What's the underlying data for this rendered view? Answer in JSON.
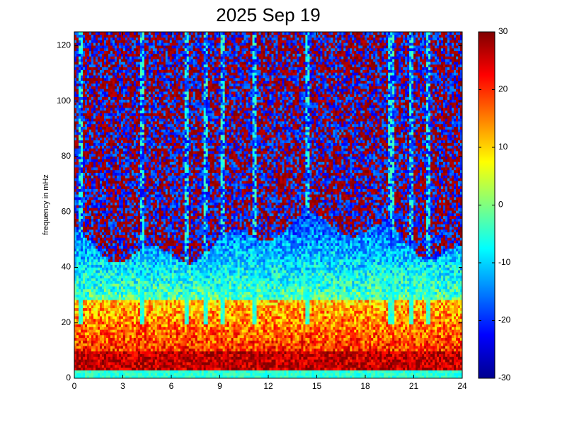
{
  "chart_data": {
    "type": "heatmap",
    "title": "2025 Sep 19",
    "xlabel": "",
    "ylabel": "frequency in mHz",
    "xlim": [
      0,
      24
    ],
    "ylim": [
      0,
      125
    ],
    "x_ticks": [
      "0",
      "3",
      "6",
      "9",
      "12",
      "15",
      "18",
      "21",
      "24"
    ],
    "y_ticks": [
      "0",
      "20",
      "40",
      "60",
      "80",
      "100",
      "120"
    ],
    "colorbar": {
      "range": [
        -30,
        30
      ],
      "ticks": [
        "-30",
        "-20",
        "-10",
        "0",
        "10",
        "20",
        "30"
      ],
      "colormap": "jet"
    },
    "features": {
      "low_band_value": 22,
      "floor_value": 30,
      "vertical_streaks_hours": [
        0.4,
        4.2,
        7.0,
        8.1,
        9.2,
        11.1,
        14.4,
        19.6,
        20.8,
        21.9
      ]
    }
  }
}
